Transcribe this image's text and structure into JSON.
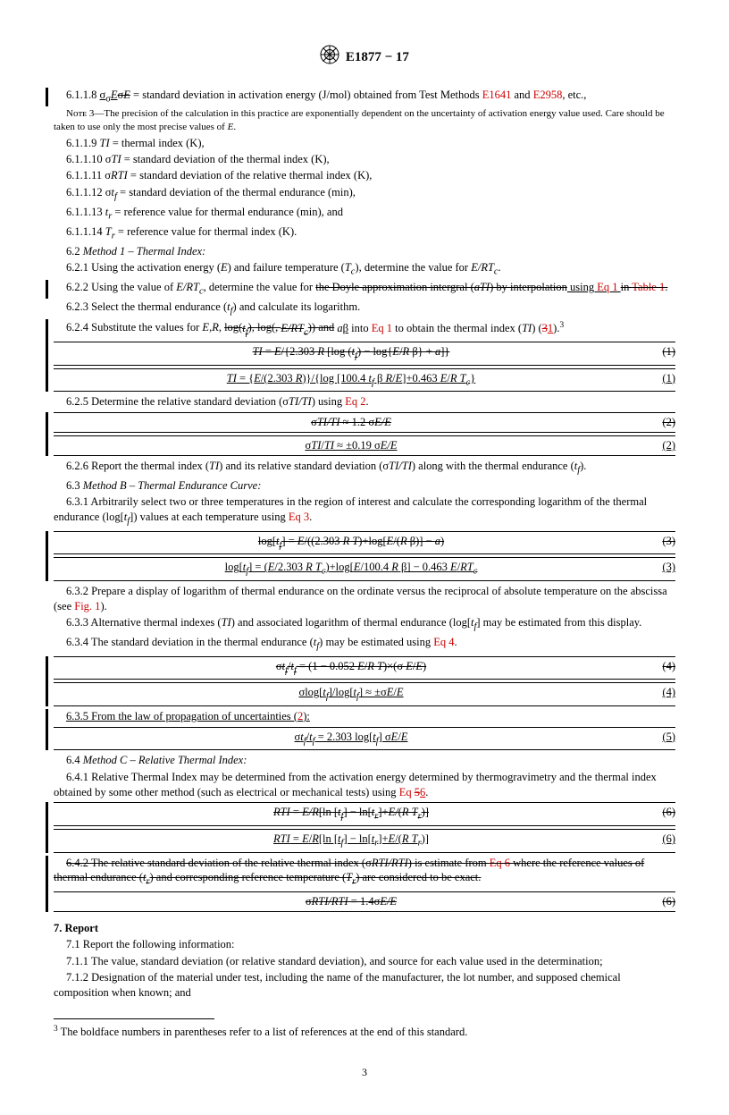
{
  "header": {
    "designation": "E1877 − 17"
  },
  "p6118": {
    "num": "6.1.1.8",
    "sym_new": "σ<sub>σ</sub><i>E</i>",
    "sym_old": "σ<i>E</i>",
    "text": " = standard deviation in activation energy (J/mol) obtained from Test Methods ",
    "ref1": "E1641",
    "and": " and ",
    "ref2": "E2958",
    "tail": ", etc.,"
  },
  "note3": {
    "label": "Nᴏᴛᴇ 3—",
    "text": "The precision of the calculation in this practice are exponentially dependent on the uncertainty of activation energy value used. Care should be taken to use only the most precise values of <i>E</i>."
  },
  "defs": [
    {
      "n": "6.1.1.9",
      "s": "<i>TI</i>",
      "t": " = thermal index (K),"
    },
    {
      "n": "6.1.1.10",
      "s": "σ<i>TI</i>",
      "t": " = standard deviation of the thermal index (K),"
    },
    {
      "n": "6.1.1.11",
      "s": "σ<i>RTI</i>",
      "t": " = standard deviation of the relative thermal index (K),"
    },
    {
      "n": "6.1.1.12",
      "s": "σ<i>t<sub>f</sub></i>",
      "t": " = standard deviation of the thermal endurance (min),"
    },
    {
      "n": "6.1.1.13",
      "s": "<i>t<sub>r</sub></i>",
      "t": " = reference value for thermal endurance (min), and"
    },
    {
      "n": "6.1.1.14",
      "s": "<i>T<sub>r</sub></i>",
      "t": " = reference value for thermal index (K)."
    }
  ],
  "s62": {
    "head": "6.2 <i>Method 1 – Thermal Index:</i>",
    "p1": "6.2.1 Using the activation energy (<i>E</i>) and failure temperature (<i>T<sub>c</sub></i>), determine the value for <i>E/RT<sub>c</sub></i>.",
    "p2_a": "6.2.2 Using the value of <i>E/RT<sub>c</sub></i>, determine the value for ",
    "p2_strike": "the Doyle approximation intergral (<i>aTI</i>) by interpolation",
    "p2_ins": " using <span class='red'>Eq 1</span> ",
    "p2_strike2": "in <span class='red'>Table 1</span>.",
    "p3": "6.2.3 Select the thermal endurance (<i>t<sub>f</sub></i>) and calculate its logarithm.",
    "p4_a": "6.2.4 Substitute the values for <i>E</i>,<i>R</i>, ",
    "p4_strike": "log(<i>t<sub>f</sub></i>), log(, <i>E/RT<sub>c</sub></i>)) and",
    "p4_b": " <i>a</i><u>β</u> into <span class='red'>Eq 1</span> to obtain the thermal index (<i>TI</i>) (<span class='red strike'>3</span><span class='red u'>1</span>).<span class='sup'>3</span>",
    "eq1_old": "<i>TI</i> = <i>E</i>/{2.303 <i>R</i> [log (<i>t<sub>f</sub></i>) − log{<i>E</i>/<i>R</i> β} + <i>a</i>]}",
    "eq1_new": "<i>TI</i> = {<i>E</i>/(2.303 <i>R</i>)}/{log [100.4 <i>t<sub>f</sub></i> β <i>R</i>/<i>E</i>]+0.463 <i>E</i>/<i>R T<sub>c</sub></i>}",
    "p5": "6.2.5 Determine the relative standard deviation (σ<i>TI/TI</i>) using <span class='red'>Eq 2</span>.",
    "eq2_old": "σ<i>TI/TI</i> ≈ 1.2 σ<i>E/E</i>",
    "eq2_new": "σ<i>TI</i>/<i>TI</i> ≈ ±0.19 σ<i>E/E</i>",
    "p6": "6.2.6 Report the thermal index (<i>TI</i>) and its relative standard deviation (σ<i>TI/TI</i>) along with the thermal endurance (<i>t<sub>f</sub></i>)."
  },
  "s63": {
    "head": "6.3 <i>Method B – Thermal Endurance Curve:</i>",
    "p1": "6.3.1 Arbitrarily select two or three temperatures in the region of interest and calculate the corresponding logarithm of the thermal endurance (log[<i>t<sub>f</sub></i>]) values at each temperature using <span class='red'>Eq 3</span>.",
    "eq3_old": "log[<i>t<sub>f</sub></i>] = <i>E</i>/((2.303 <i>R T</i>)+log[<i>E</i>/(<i>R</i> β)] − <i>a</i>)",
    "eq3_new": "log[<i>t<sub>f</sub></i>] = (<i>E</i>/2.303 <i>R T<sub>c</sub></i>)+log[<i>E</i>/100.4 <i>R</i> β] − 0.463 <i>E</i>/<i>RT<sub>c</sub></i>",
    "p2": "6.3.2 Prepare a display of logarithm of thermal endurance on the ordinate versus the reciprocal of absolute temperature on the abscissa (see <span class='red'>Fig. 1</span>).",
    "p3": "6.3.3 Alternative thermal indexes (<i>TI</i>) and associated logarithm of thermal endurance (log[<i>t<sub>f</sub></i>] may be estimated from this display.",
    "p4": "6.3.4 The standard deviation in the thermal endurance (<i>t<sub>f</sub></i>) may be estimated using <span class='red'>Eq 4</span>.",
    "eq4_old": "σ<i>t<sub>f</sub></i>/<i>t<sub>f</sub></i> = (1 − 0.052 <i>E</i>/<i>R T</i>)×(σ <i>E</i>/<i>E</i>)",
    "eq4_new": "σlog[<i>t<sub>f</sub></i>]/log[<i>t<sub>f</sub></i>] ≈ ±σ<i>E</i>/<i>E</i>",
    "p5": "<u>6.3.5 From the law of propagation of uncertainties (<span class='red'>2</span>):</u>",
    "eq5": "σ<i>t<sub>f</sub></i>/<i>t<sub>f</sub></i> = 2.303 log[<i>t<sub>f</sub></i>] σ<i>E</i>/<i>E</i>"
  },
  "s64": {
    "head": "6.4 <i>Method C – Relative Thermal Index:</i>",
    "p1": "6.4.1 Relative Thermal Index may be determined from the activation energy determined by thermogravimetry and the thermal index obtained by some other method (such as electrical or mechanical tests) using <span class='red'>Eq <span class=\"strike\">5</span><u>6</u></span>.",
    "eq6_old": "<i>RTI</i> = <i>E/R</i>[ln [<i>t<sub>f</sub></i>] − ln[<i>t<sub>r</sub></i>]+<i>E/</i>(<i>R T<sub>r</sub></i>)]",
    "eq6_new": "<i>RTI</i> = <i>E</i>/<i>R</i>[ln [<i>t<sub>f</sub></i>] − ln[<i>t<sub>r</sub></i>]+<i>E</i>/(<i>R T<sub>r</sub></i>)]",
    "p2_strike": "6.4.2 The relative standard deviation of the relative thermal index (σ<i>RTI/RTI</i>) is estimate from <span class='red'>Eq 6</span> where the reference values of thermal endurance (<i>t<sub>r</sub></i>) and corresponding reference temperature (<i>T<sub>r</sub></i>) are considered to be exact.",
    "eq_old": "σ<i>RTI/RTI</i> = 1.4σ<i>E/E</i>"
  },
  "s7": {
    "head": "7. Report",
    "p1": "7.1 Report the following information:",
    "p2": "7.1.1 The value, standard deviation (or relative standard deviation), and source for each value used in the determination;",
    "p3": "7.1.2 Designation of the material under test, including the name of the manufacturer, the lot number, and supposed chemical composition when known; and"
  },
  "footnote": "The boldface numbers in parentheses refer to a list of references at the end of this standard.",
  "pagenum": "3"
}
